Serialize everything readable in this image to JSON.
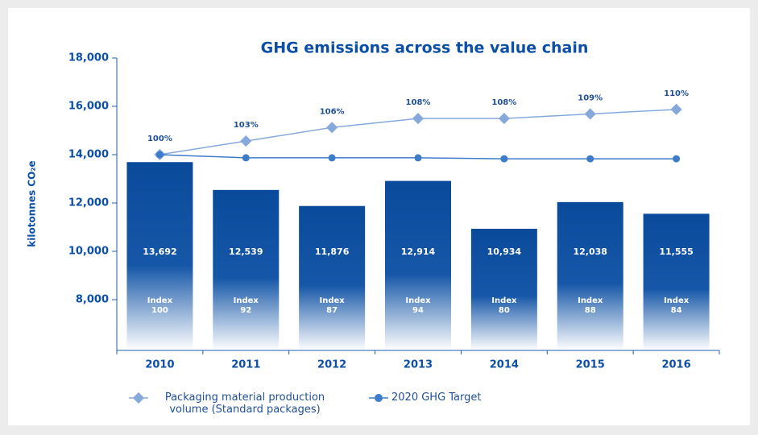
{
  "chart_data": {
    "type": "bar",
    "title": "GHG emissions across the value chain",
    "y_label": "kilotonnes CO₂e",
    "categories": [
      "2010",
      "2011",
      "2012",
      "2013",
      "2014",
      "2015",
      "2016"
    ],
    "ylim": [
      5900,
      18000
    ],
    "yticks": [
      {
        "value": 8000,
        "label": "8,000"
      },
      {
        "value": 10000,
        "label": "10,000"
      },
      {
        "value": 12000,
        "label": "12,000"
      },
      {
        "value": 14000,
        "label": "14,000"
      },
      {
        "value": 16000,
        "label": "16,000"
      },
      {
        "value": 18000,
        "label": "18,000"
      }
    ],
    "y2lim": [
      56.6,
      121.4
    ],
    "bars": {
      "color": "#0a4a9b",
      "values": [
        13692,
        12539,
        11876,
        12914,
        10934,
        12038,
        11555
      ],
      "value_labels": [
        "13,692",
        "12,539",
        "11,876",
        "12,914",
        "10,934",
        "12,038",
        "11,555"
      ],
      "index_label": "Index",
      "index_values": [
        100,
        92,
        87,
        94,
        80,
        88,
        84
      ]
    },
    "series": [
      {
        "name": "Packaging material production volume (Standard packages)",
        "color": "#86a9db",
        "marker": "diamond",
        "axis": "y2",
        "values": [
          100,
          103,
          106,
          108,
          108,
          109,
          110
        ],
        "value_labels": [
          "100%",
          "103%",
          "106%",
          "108%",
          "108%",
          "109%",
          "110%"
        ]
      },
      {
        "name": "2020 GHG Target",
        "color": "#3d7cc9",
        "marker": "circle",
        "values": [
          14000,
          13870,
          13870,
          13870,
          13830,
          13830,
          13830
        ]
      }
    ]
  }
}
